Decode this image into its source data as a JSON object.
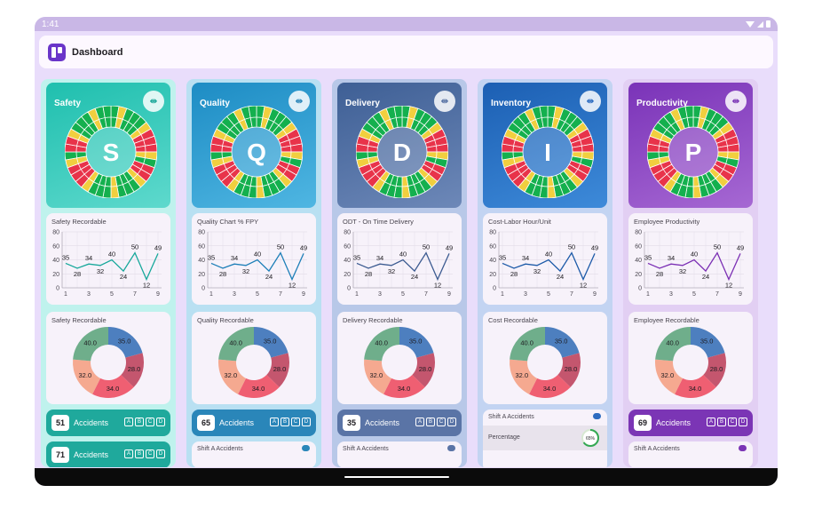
{
  "status": {
    "time": "1:41"
  },
  "appbar": {
    "title": "Dashboard"
  },
  "wheel_colors": [
    "#e8334a",
    "#14b04e",
    "#f1cf3f",
    "#14b04e",
    "#e8334a",
    "#14b04e",
    "#f1cf3f",
    "#e8334a",
    "#14b04e",
    "#14b04e",
    "#f1cf3f",
    "#e8334a",
    "#14b04e",
    "#e8334a",
    "#f1cf3f",
    "#14b04e"
  ],
  "line_chart": {
    "x": [
      1,
      2,
      3,
      4,
      5,
      6,
      7,
      8,
      9
    ],
    "y": [
      35,
      28,
      34,
      32,
      40,
      24,
      50,
      12,
      49
    ],
    "ylim": [
      0,
      80
    ],
    "yticks": [
      "0",
      "20",
      "40",
      "60",
      "80"
    ],
    "xticks": [
      "1",
      "3",
      "5",
      "7",
      "9"
    ]
  },
  "donut": {
    "values": [
      35.0,
      28.0,
      34.0,
      32.0,
      40.0
    ],
    "labels": [
      "35.0",
      "28.0",
      "34.0",
      "32.0",
      "40.0"
    ],
    "colors": [
      "#4d7fbf",
      "#c4566e",
      "#ef5f72",
      "#f5a990",
      "#6fae8b"
    ]
  },
  "accidents_word": "Accidents",
  "letters": [
    "A",
    "B",
    "C",
    "D"
  ],
  "shift_title": "Shift A Accidents",
  "percentage_label": "Percentage",
  "percentage_value": "65%",
  "columns": [
    {
      "key": "safety",
      "title": "Safety",
      "letter": "S",
      "hero_gradient": [
        "#1fbfae",
        "#5ed9cd"
      ],
      "col_bg": "#bff2ed",
      "chart_title": "Safety Recordable",
      "line_color": "#17a89b",
      "donut_title": "Safety Recordable",
      "acc_color": "#1fa99c",
      "accidents": [
        "51",
        "71"
      ]
    },
    {
      "key": "quality",
      "title": "Quality",
      "letter": "Q",
      "hero_gradient": [
        "#1d8cc4",
        "#4fb6e2"
      ],
      "col_bg": "#b9e0f2",
      "chart_title": "Quality Chart % FPY",
      "line_color": "#1d7fb8",
      "donut_title": "Quality Recordable",
      "acc_color": "#2a86b9",
      "accidents": [
        "65"
      ]
    },
    {
      "key": "delivery",
      "title": "Delivery",
      "letter": "D",
      "hero_gradient": [
        "#3e5f95",
        "#6d88b8"
      ],
      "col_bg": "#b8c8e8",
      "chart_title": "ODT - On Time Delivery",
      "line_color": "#3c5b91",
      "donut_title": "Delivery Recordable",
      "acc_color": "#5a74a6",
      "accidents": [
        "35"
      ]
    },
    {
      "key": "inventory",
      "title": "Inventory",
      "letter": "I",
      "hero_gradient": [
        "#1c5fb3",
        "#3d8ad9"
      ],
      "col_bg": "#c3d4f2",
      "chart_title": "Cost-Labor Hour/Unit",
      "line_color": "#1c5aa8",
      "donut_title": "Cost Recordable",
      "acc_color": "#2d6cc0",
      "accidents": []
    },
    {
      "key": "productivity",
      "title": "Productivity",
      "letter": "P",
      "hero_gradient": [
        "#7a33b8",
        "#a668d3"
      ],
      "col_bg": "#e2cff3",
      "chart_title": "Employee Productivity",
      "line_color": "#7b2fb4",
      "donut_title": "Employee Recordable",
      "acc_color": "#7b35b5",
      "accidents": [
        "69"
      ]
    }
  ]
}
